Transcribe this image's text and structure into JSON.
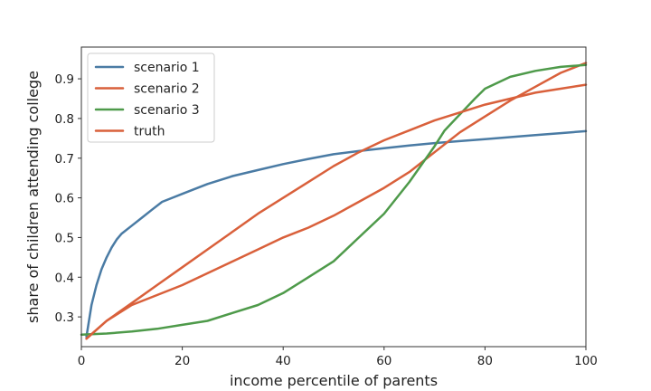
{
  "chart_data": {
    "type": "line",
    "title": "",
    "xlabel": "income percentile of parents",
    "ylabel": "share of children attending college",
    "xlim": [
      0,
      100
    ],
    "ylim": [
      0.225,
      0.98
    ],
    "xticks": [
      0,
      20,
      40,
      60,
      80,
      100
    ],
    "yticks": [
      0.3,
      0.4,
      0.5,
      0.6,
      0.7,
      0.8,
      0.9
    ],
    "grid": false,
    "legend": "top-left",
    "series": [
      {
        "name": "scenario 1",
        "color": "#4a7ba4",
        "x": [
          1,
          2,
          3,
          4,
          5,
          6,
          7,
          8,
          10,
          12,
          14,
          16,
          18,
          20,
          22,
          25,
          30,
          35,
          40,
          45,
          50,
          55,
          60,
          65,
          70,
          75,
          80,
          85,
          90,
          95,
          100
        ],
        "y": [
          0.25,
          0.33,
          0.38,
          0.42,
          0.45,
          0.475,
          0.495,
          0.51,
          0.53,
          0.55,
          0.57,
          0.59,
          0.6,
          0.61,
          0.62,
          0.635,
          0.655,
          0.67,
          0.685,
          0.698,
          0.71,
          0.718,
          0.725,
          0.732,
          0.738,
          0.743,
          0.748,
          0.753,
          0.758,
          0.763,
          0.768
        ]
      },
      {
        "name": "scenario 2",
        "color": "#d9603b",
        "x": [
          1,
          5,
          10,
          15,
          20,
          25,
          30,
          35,
          40,
          45,
          50,
          55,
          60,
          65,
          70,
          75,
          80,
          85,
          90,
          95,
          100
        ],
        "y": [
          0.245,
          0.29,
          0.33,
          0.355,
          0.38,
          0.41,
          0.44,
          0.47,
          0.5,
          0.525,
          0.555,
          0.59,
          0.625,
          0.665,
          0.715,
          0.765,
          0.805,
          0.845,
          0.88,
          0.915,
          0.94
        ]
      },
      {
        "name": "scenario 3",
        "color": "#4e9a4a",
        "x": [
          0,
          5,
          10,
          15,
          20,
          25,
          30,
          35,
          40,
          45,
          50,
          55,
          60,
          65,
          70,
          72,
          75,
          78,
          80,
          85,
          90,
          95,
          100
        ],
        "y": [
          0.255,
          0.258,
          0.263,
          0.27,
          0.28,
          0.29,
          0.31,
          0.33,
          0.36,
          0.4,
          0.44,
          0.5,
          0.56,
          0.64,
          0.73,
          0.77,
          0.81,
          0.85,
          0.875,
          0.905,
          0.92,
          0.93,
          0.935
        ]
      },
      {
        "name": "truth",
        "color": "#d9603b",
        "x": [
          1,
          5,
          10,
          15,
          20,
          25,
          30,
          35,
          40,
          45,
          50,
          55,
          60,
          65,
          70,
          75,
          80,
          85,
          90,
          95,
          100
        ],
        "y": [
          0.245,
          0.29,
          0.335,
          0.38,
          0.425,
          0.47,
          0.515,
          0.56,
          0.6,
          0.64,
          0.68,
          0.715,
          0.745,
          0.77,
          0.795,
          0.815,
          0.835,
          0.85,
          0.865,
          0.875,
          0.885
        ]
      }
    ]
  }
}
